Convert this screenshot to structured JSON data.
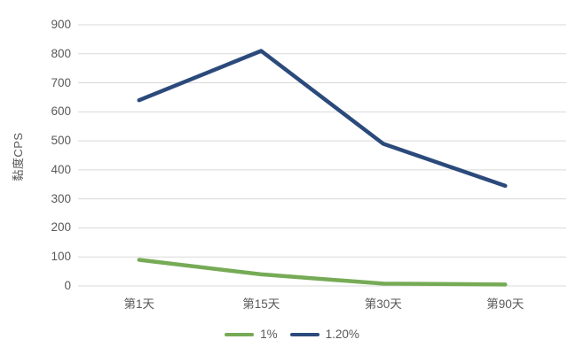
{
  "chart_data": {
    "type": "line",
    "title": "",
    "ylabel": "黏度CPS",
    "xlabel": "",
    "categories": [
      "第1天",
      "第15天",
      "第30天",
      "第90天"
    ],
    "series": [
      {
        "name": "1%",
        "color": "#76ab56",
        "values": [
          90,
          40,
          8,
          5
        ]
      },
      {
        "name": "1.20%",
        "color": "#2b4a7b",
        "values": [
          640,
          810,
          490,
          345
        ]
      }
    ],
    "ylim": [
      0,
      900
    ],
    "ytick_step": 100,
    "ytick_labels": [
      "0",
      "100",
      "200",
      "300",
      "400",
      "500",
      "600",
      "700",
      "800",
      "900"
    ],
    "grid": "horizontal",
    "gridline_color": "#d9d9d9",
    "text_color": "#595959",
    "legend_position": "bottom-center"
  }
}
